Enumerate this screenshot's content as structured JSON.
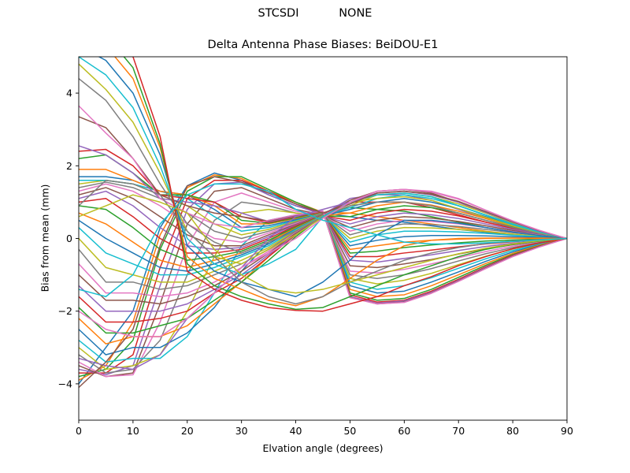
{
  "figure": {
    "suptitle_left": "STCSDI",
    "suptitle_right": "NONE"
  },
  "chart_data": {
    "type": "line",
    "title": "Delta Antenna Phase Biases: BeiDOU-E1",
    "xlabel": "Elvation angle (degrees)",
    "ylabel": "Bias from mean (mm)",
    "xlim": [
      0,
      90
    ],
    "ylim": [
      -5,
      5
    ],
    "xticks": [
      0,
      10,
      20,
      30,
      40,
      50,
      60,
      70,
      80,
      90
    ],
    "yticks": [
      -4,
      -2,
      0,
      2,
      4
    ],
    "grid": false,
    "legend": "none",
    "x": [
      0,
      5,
      10,
      15,
      20,
      25,
      30,
      35,
      40,
      45,
      50,
      55,
      60,
      65,
      70,
      75,
      80,
      85,
      90
    ],
    "note_colors": [
      "#1f77b4",
      "#ff7f0e",
      "#2ca02c",
      "#d62728",
      "#9467bd",
      "#8c564b",
      "#e377c2",
      "#7f7f7f",
      "#bcbd22",
      "#17becf"
    ],
    "series": [
      {
        "values": [
          -4.0,
          -3.0,
          -2.0,
          0.3,
          1.45,
          1.8,
          1.6,
          1.2,
          0.9,
          0.7,
          0.6,
          0.5,
          0.45,
          0.35,
          0.25,
          0.17,
          0.1,
          0.05,
          0
        ]
      },
      {
        "values": [
          -3.9,
          -3.5,
          -2.3,
          0.1,
          1.4,
          1.75,
          1.65,
          1.3,
          1.0,
          0.72,
          0.7,
          0.6,
          0.5,
          0.4,
          0.3,
          0.2,
          0.12,
          0.05,
          0
        ]
      },
      {
        "values": [
          -3.8,
          -3.6,
          -2.8,
          -0.3,
          1.3,
          1.7,
          1.7,
          1.35,
          1.0,
          0.7,
          0.85,
          0.8,
          0.75,
          0.6,
          0.45,
          0.3,
          0.18,
          0.08,
          0
        ]
      },
      {
        "values": [
          -3.7,
          -3.7,
          -3.2,
          -0.8,
          1.1,
          1.6,
          1.6,
          1.3,
          0.95,
          0.68,
          1.0,
          1.0,
          1.0,
          0.85,
          0.65,
          0.45,
          0.28,
          0.12,
          0
        ]
      },
      {
        "values": [
          -3.6,
          -3.75,
          -3.5,
          -1.3,
          0.8,
          1.5,
          1.55,
          1.2,
          0.9,
          0.66,
          1.1,
          1.2,
          1.2,
          1.05,
          0.8,
          0.55,
          0.33,
          0.15,
          0
        ]
      },
      {
        "values": [
          -3.5,
          -3.8,
          -3.7,
          -1.8,
          0.4,
          1.3,
          1.4,
          1.1,
          0.8,
          0.65,
          1.05,
          1.3,
          1.35,
          1.25,
          1.0,
          0.7,
          0.42,
          0.18,
          0
        ]
      },
      {
        "values": [
          -3.4,
          -3.8,
          -3.75,
          -2.3,
          -0.2,
          1.0,
          1.25,
          1.0,
          0.75,
          0.64,
          1.0,
          1.3,
          1.35,
          1.3,
          1.1,
          0.78,
          0.48,
          0.2,
          0
        ]
      },
      {
        "values": [
          -3.2,
          -3.7,
          -3.6,
          -2.8,
          -1.0,
          0.5,
          1.0,
          0.9,
          0.7,
          0.63,
          0.95,
          1.25,
          1.3,
          1.2,
          1.0,
          0.72,
          0.45,
          0.2,
          0
        ]
      },
      {
        "values": [
          -3.0,
          -3.6,
          -3.5,
          -3.2,
          -2.0,
          -0.5,
          0.7,
          0.8,
          0.7,
          0.62,
          0.9,
          1.2,
          1.25,
          1.15,
          0.95,
          0.7,
          0.43,
          0.2,
          0
        ]
      },
      {
        "values": [
          -2.8,
          -3.4,
          -3.3,
          -3.3,
          -2.7,
          -1.5,
          -0.2,
          0.5,
          0.65,
          0.62,
          0.85,
          1.1,
          1.2,
          1.1,
          0.9,
          0.65,
          0.4,
          0.18,
          0
        ]
      },
      {
        "values": [
          -2.5,
          -3.2,
          -3.0,
          -3.0,
          -2.6,
          -1.9,
          -0.9,
          -0.1,
          0.4,
          0.62,
          0.8,
          1.0,
          1.1,
          1.0,
          0.82,
          0.6,
          0.37,
          0.17,
          0
        ]
      },
      {
        "values": [
          -2.2,
          -2.9,
          -2.7,
          -2.7,
          -2.4,
          -1.8,
          -1.2,
          -0.5,
          0.2,
          0.62,
          0.7,
          0.9,
          1.0,
          0.92,
          0.75,
          0.55,
          0.34,
          0.15,
          0
        ]
      },
      {
        "values": [
          -1.9,
          -2.6,
          -2.6,
          -2.4,
          -2.2,
          -1.7,
          -1.2,
          -0.6,
          0.05,
          0.62,
          0.6,
          0.8,
          0.9,
          0.85,
          0.7,
          0.5,
          0.31,
          0.14,
          0
        ]
      },
      {
        "values": [
          -1.6,
          -2.3,
          -2.3,
          -2.2,
          -2.0,
          -1.5,
          -1.1,
          -0.5,
          0.1,
          0.62,
          0.5,
          0.7,
          0.8,
          0.75,
          0.62,
          0.45,
          0.28,
          0.13,
          0
        ]
      },
      {
        "values": [
          -1.3,
          -2.0,
          -2.0,
          -2.0,
          -1.8,
          -1.4,
          -1.0,
          -0.45,
          0.12,
          0.62,
          0.4,
          0.6,
          0.7,
          0.65,
          0.55,
          0.4,
          0.25,
          0.12,
          0
        ]
      },
      {
        "values": [
          -1.0,
          -1.7,
          -1.7,
          -1.8,
          -1.6,
          -1.3,
          -0.9,
          -0.4,
          0.15,
          0.63,
          0.3,
          0.5,
          0.6,
          0.56,
          0.47,
          0.35,
          0.22,
          0.1,
          0
        ]
      },
      {
        "values": [
          -0.7,
          -1.5,
          -1.5,
          -1.6,
          -1.5,
          -1.2,
          -0.8,
          -0.35,
          0.18,
          0.63,
          0.2,
          0.4,
          0.5,
          0.47,
          0.4,
          0.3,
          0.19,
          0.09,
          0
        ]
      },
      {
        "values": [
          -0.3,
          -1.2,
          -1.2,
          -1.4,
          -1.3,
          -1.0,
          -0.7,
          -0.3,
          0.2,
          0.64,
          0.1,
          0.3,
          0.4,
          0.38,
          0.33,
          0.25,
          0.16,
          0.08,
          0
        ]
      },
      {
        "values": [
          0.0,
          -0.8,
          -1.0,
          -1.2,
          -1.2,
          -0.9,
          -0.6,
          -0.25,
          0.22,
          0.64,
          0.0,
          0.2,
          0.3,
          0.29,
          0.25,
          0.19,
          0.12,
          0.06,
          0
        ]
      },
      {
        "values": [
          0.3,
          -0.4,
          -0.7,
          -1.0,
          -1.0,
          -0.8,
          -0.5,
          -0.2,
          0.25,
          0.65,
          -0.1,
          0.1,
          0.2,
          0.2,
          0.18,
          0.14,
          0.09,
          0.05,
          0
        ]
      },
      {
        "values": [
          0.5,
          0.0,
          -0.4,
          -0.8,
          -0.9,
          -0.7,
          -0.45,
          -0.15,
          0.28,
          0.66,
          -0.2,
          -0.05,
          0.05,
          0.08,
          0.08,
          0.07,
          0.05,
          0.03,
          0
        ]
      },
      {
        "values": [
          0.7,
          0.4,
          -0.1,
          -0.6,
          -0.8,
          -0.6,
          -0.4,
          -0.1,
          0.3,
          0.66,
          -0.3,
          -0.2,
          -0.1,
          -0.05,
          -0.02,
          0.0,
          0.01,
          0.01,
          0
        ]
      },
      {
        "values": [
          0.9,
          0.8,
          0.3,
          -0.3,
          -0.6,
          -0.5,
          -0.35,
          -0.05,
          0.32,
          0.67,
          -0.4,
          -0.35,
          -0.25,
          -0.18,
          -0.12,
          -0.07,
          -0.04,
          -0.02,
          0
        ]
      },
      {
        "values": [
          1.0,
          1.1,
          0.6,
          0.0,
          -0.4,
          -0.4,
          -0.3,
          0.0,
          0.35,
          0.68,
          -0.5,
          -0.5,
          -0.4,
          -0.32,
          -0.23,
          -0.15,
          -0.09,
          -0.04,
          0
        ]
      },
      {
        "values": [
          1.1,
          1.3,
          0.9,
          0.3,
          -0.2,
          -0.3,
          -0.25,
          0.05,
          0.38,
          0.68,
          -0.6,
          -0.65,
          -0.55,
          -0.45,
          -0.33,
          -0.22,
          -0.13,
          -0.06,
          0
        ]
      },
      {
        "values": [
          1.2,
          1.4,
          1.1,
          0.6,
          0.1,
          -0.2,
          -0.2,
          0.1,
          0.4,
          0.69,
          -0.75,
          -0.8,
          -0.7,
          -0.58,
          -0.43,
          -0.29,
          -0.17,
          -0.08,
          0
        ]
      },
      {
        "values": [
          1.3,
          1.5,
          1.3,
          0.9,
          0.4,
          0.0,
          -0.1,
          0.15,
          0.42,
          0.7,
          -0.9,
          -0.95,
          -0.85,
          -0.7,
          -0.53,
          -0.36,
          -0.21,
          -0.1,
          0
        ]
      },
      {
        "values": [
          1.4,
          1.55,
          1.4,
          1.1,
          0.7,
          0.2,
          0.0,
          0.2,
          0.45,
          0.7,
          -1.0,
          -1.1,
          -1.0,
          -0.83,
          -0.62,
          -0.42,
          -0.25,
          -0.11,
          0
        ]
      },
      {
        "values": [
          1.5,
          1.6,
          1.5,
          1.2,
          0.9,
          0.4,
          0.1,
          0.25,
          0.48,
          0.71,
          -1.1,
          -1.25,
          -1.15,
          -0.96,
          -0.72,
          -0.49,
          -0.29,
          -0.13,
          0
        ]
      },
      {
        "values": [
          1.6,
          1.6,
          1.5,
          1.3,
          1.1,
          0.6,
          0.2,
          0.3,
          0.5,
          0.72,
          -1.2,
          -1.4,
          -1.3,
          -1.08,
          -0.82,
          -0.56,
          -0.33,
          -0.15,
          0
        ]
      },
      {
        "values": [
          1.7,
          1.7,
          1.6,
          1.3,
          1.2,
          0.8,
          0.3,
          0.35,
          0.52,
          0.72,
          -1.3,
          -1.5,
          -1.45,
          -1.2,
          -0.92,
          -0.63,
          -0.37,
          -0.17,
          0
        ]
      },
      {
        "values": [
          1.9,
          1.9,
          1.6,
          1.3,
          1.2,
          0.9,
          0.4,
          0.4,
          0.55,
          0.73,
          -1.4,
          -1.6,
          -1.55,
          -1.3,
          -1.0,
          -0.69,
          -0.41,
          -0.18,
          0
        ]
      },
      {
        "values": [
          2.2,
          2.3,
          1.8,
          1.2,
          1.2,
          1.0,
          0.5,
          0.42,
          0.57,
          0.74,
          -1.5,
          -1.7,
          -1.65,
          -1.4,
          -1.07,
          -0.74,
          -0.44,
          -0.2,
          0
        ]
      },
      {
        "values": [
          2.4,
          2.45,
          2.0,
          1.2,
          1.1,
          1.0,
          0.6,
          0.44,
          0.6,
          0.74,
          -1.55,
          -1.75,
          -1.7,
          -1.45,
          -1.12,
          -0.78,
          -0.46,
          -0.21,
          0
        ]
      },
      {
        "values": [
          2.55,
          2.3,
          1.8,
          1.1,
          1.0,
          0.9,
          0.7,
          0.46,
          0.62,
          0.75,
          -1.6,
          -1.78,
          -1.72,
          -1.48,
          -1.15,
          -0.8,
          -0.48,
          -0.22,
          0
        ]
      },
      {
        "values": [
          3.35,
          3.05,
          2.2,
          1.2,
          0.9,
          0.7,
          0.6,
          0.48,
          0.64,
          0.75,
          -1.62,
          -1.8,
          -1.75,
          -1.5,
          -1.17,
          -0.82,
          -0.49,
          -0.22,
          0
        ]
      },
      {
        "values": [
          3.65,
          2.9,
          2.2,
          1.1,
          0.7,
          0.4,
          0.3,
          0.5,
          0.65,
          0.76,
          -1.63,
          -1.8,
          -1.76,
          -1.51,
          -1.18,
          -0.83,
          -0.5,
          -0.23,
          0
        ]
      },
      {
        "values": [
          4.4,
          3.8,
          2.8,
          1.5,
          0.4,
          -0.1,
          -0.4,
          -0.1,
          0.2,
          0.6,
          0.9,
          1.0,
          1.0,
          0.9,
          0.7,
          0.5,
          0.3,
          0.14,
          0
        ]
      },
      {
        "values": [
          4.8,
          4.1,
          3.2,
          1.8,
          0.2,
          -0.5,
          -0.7,
          -0.3,
          0.1,
          0.58,
          1.0,
          1.1,
          1.15,
          1.05,
          0.82,
          0.58,
          0.35,
          0.16,
          0
        ]
      },
      {
        "values": [
          5.0,
          4.5,
          3.6,
          2.0,
          0.0,
          -0.7,
          -1.0,
          -0.7,
          -0.3,
          0.6,
          1.0,
          1.2,
          1.25,
          1.15,
          0.9,
          0.64,
          0.38,
          0.17,
          0
        ]
      },
      {
        "values": [
          5.3,
          4.9,
          4.0,
          2.3,
          -0.2,
          -0.9,
          -1.2,
          -1.4,
          -1.6,
          -1.2,
          -0.6,
          0.1,
          0.5,
          0.5,
          0.42,
          0.3,
          0.18,
          0.08,
          0
        ]
      },
      {
        "values": [
          5.6,
          5.3,
          4.4,
          2.5,
          -0.5,
          -1.1,
          -1.4,
          -1.7,
          -1.85,
          -1.6,
          -1.1,
          -0.6,
          -0.2,
          -0.05,
          0.0,
          0.01,
          0.01,
          0.0,
          0
        ]
      },
      {
        "values": [
          5.9,
          5.6,
          4.7,
          2.6,
          -0.7,
          -1.3,
          -1.6,
          -1.8,
          -1.95,
          -1.9,
          -1.6,
          -1.3,
          -1.0,
          -0.75,
          -0.5,
          -0.3,
          -0.16,
          -0.07,
          0
        ]
      },
      {
        "values": [
          6.2,
          5.9,
          5.0,
          2.8,
          -0.9,
          -1.4,
          -1.7,
          -1.9,
          -1.98,
          -2.0,
          -1.8,
          -1.6,
          -1.3,
          -1.05,
          -0.75,
          -0.5,
          -0.28,
          -0.12,
          0
        ]
      },
      {
        "values": [
          -3.3,
          -3.5,
          -3.6,
          -3.2,
          -2.2,
          -1.5,
          -0.8,
          0.0,
          0.6,
          0.8,
          1.0,
          1.25,
          1.3,
          1.2,
          1.0,
          0.72,
          0.45,
          0.2,
          0
        ]
      },
      {
        "values": [
          -4.1,
          -3.4,
          -2.5,
          -0.2,
          1.45,
          1.7,
          1.55,
          1.25,
          0.95,
          0.7,
          0.95,
          1.25,
          1.3,
          1.22,
          1.02,
          0.74,
          0.46,
          0.21,
          0
        ]
      },
      {
        "values": [
          -2.0,
          -2.5,
          -2.7,
          -2.7,
          -2.2,
          -1.5,
          -0.8,
          -0.4,
          0.0,
          0.55,
          1.0,
          1.3,
          1.35,
          1.28,
          1.08,
          0.78,
          0.48,
          0.22,
          0
        ]
      },
      {
        "values": [
          0.9,
          1.6,
          1.5,
          1.2,
          0.2,
          -0.5,
          -1.2,
          -1.6,
          -1.8,
          -1.6,
          -1.2,
          -0.9,
          -0.6,
          -0.4,
          -0.25,
          -0.14,
          -0.07,
          -0.03,
          0
        ]
      },
      {
        "values": [
          0.6,
          0.9,
          1.2,
          1.0,
          0.7,
          -0.3,
          -1.0,
          -1.4,
          -1.5,
          -1.4,
          -1.2,
          -1.0,
          -0.8,
          -0.6,
          -0.42,
          -0.27,
          -0.15,
          -0.06,
          0
        ]
      },
      {
        "values": [
          -1.4,
          -1.6,
          -1.0,
          0.4,
          1.2,
          1.5,
          1.5,
          1.3,
          0.8,
          0.5,
          0.3,
          0.1,
          -0.1,
          -0.15,
          -0.15,
          -0.12,
          -0.08,
          -0.04,
          0
        ]
      }
    ]
  }
}
